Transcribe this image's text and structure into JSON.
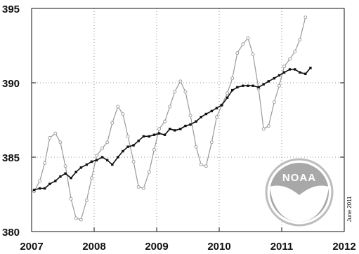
{
  "chart_data": {
    "type": "line",
    "xlim": [
      2007,
      2012
    ],
    "ylim": [
      380,
      395
    ],
    "x_ticks": [
      {
        "value": 2007,
        "label": "2007"
      },
      {
        "value": 2008,
        "label": "2008"
      },
      {
        "value": 2009,
        "label": "2009"
      },
      {
        "value": 2010,
        "label": "2010"
      },
      {
        "value": 2011,
        "label": "2011"
      },
      {
        "value": 2012,
        "label": "2012"
      }
    ],
    "y_ticks": [
      {
        "value": 380,
        "label": "380"
      },
      {
        "value": 385,
        "label": "385"
      },
      {
        "value": 390,
        "label": "390"
      },
      {
        "value": 395,
        "label": "395"
      }
    ],
    "grid": true,
    "grid_style": "dotted",
    "side_note": "June 2011",
    "logo_text": "NOAA",
    "series": [
      {
        "style": "seasonal",
        "color": "#999999",
        "points": [
          [
            2007.04,
            382.7
          ],
          [
            2007.13,
            383.4
          ],
          [
            2007.21,
            384.6
          ],
          [
            2007.29,
            386.3
          ],
          [
            2007.38,
            386.6
          ],
          [
            2007.46,
            386.0
          ],
          [
            2007.54,
            384.4
          ],
          [
            2007.63,
            382.2
          ],
          [
            2007.71,
            380.9
          ],
          [
            2007.79,
            380.8
          ],
          [
            2007.88,
            382.1
          ],
          [
            2007.96,
            383.6
          ],
          [
            2008.04,
            385.1
          ],
          [
            2008.13,
            385.6
          ],
          [
            2008.21,
            386.0
          ],
          [
            2008.29,
            387.3
          ],
          [
            2008.38,
            388.4
          ],
          [
            2008.46,
            387.9
          ],
          [
            2008.54,
            386.4
          ],
          [
            2008.63,
            384.7
          ],
          [
            2008.71,
            383.0
          ],
          [
            2008.79,
            382.9
          ],
          [
            2008.88,
            384.0
          ],
          [
            2008.96,
            385.5
          ],
          [
            2009.04,
            386.9
          ],
          [
            2009.13,
            387.4
          ],
          [
            2009.21,
            388.4
          ],
          [
            2009.29,
            389.4
          ],
          [
            2009.38,
            390.1
          ],
          [
            2009.46,
            389.4
          ],
          [
            2009.54,
            387.8
          ],
          [
            2009.63,
            385.7
          ],
          [
            2009.71,
            384.5
          ],
          [
            2009.79,
            384.4
          ],
          [
            2009.88,
            386.0
          ],
          [
            2009.96,
            387.7
          ],
          [
            2010.04,
            388.5
          ],
          [
            2010.13,
            389.3
          ],
          [
            2010.21,
            390.3
          ],
          [
            2010.29,
            392.0
          ],
          [
            2010.38,
            392.6
          ],
          [
            2010.46,
            393.0
          ],
          [
            2010.54,
            391.9
          ],
          [
            2010.63,
            389.6
          ],
          [
            2010.71,
            386.9
          ],
          [
            2010.79,
            387.1
          ],
          [
            2010.88,
            388.7
          ],
          [
            2010.96,
            389.8
          ],
          [
            2011.04,
            391.1
          ],
          [
            2011.13,
            391.6
          ],
          [
            2011.21,
            392.1
          ],
          [
            2011.29,
            392.9
          ],
          [
            2011.38,
            394.4
          ]
        ]
      },
      {
        "style": "trend",
        "color": "#111111",
        "points": [
          [
            2007.04,
            382.8
          ],
          [
            2007.13,
            382.9
          ],
          [
            2007.21,
            382.9
          ],
          [
            2007.29,
            383.2
          ],
          [
            2007.38,
            383.4
          ],
          [
            2007.46,
            383.7
          ],
          [
            2007.54,
            383.9
          ],
          [
            2007.63,
            383.6
          ],
          [
            2007.71,
            384.0
          ],
          [
            2007.79,
            384.3
          ],
          [
            2007.88,
            384.5
          ],
          [
            2007.96,
            384.7
          ],
          [
            2008.04,
            384.8
          ],
          [
            2008.13,
            385.0
          ],
          [
            2008.21,
            384.8
          ],
          [
            2008.29,
            384.5
          ],
          [
            2008.38,
            385.0
          ],
          [
            2008.46,
            385.4
          ],
          [
            2008.54,
            385.7
          ],
          [
            2008.63,
            385.8
          ],
          [
            2008.71,
            386.1
          ],
          [
            2008.79,
            386.4
          ],
          [
            2008.88,
            386.4
          ],
          [
            2008.96,
            386.5
          ],
          [
            2009.04,
            386.6
          ],
          [
            2009.13,
            386.5
          ],
          [
            2009.21,
            386.9
          ],
          [
            2009.29,
            386.8
          ],
          [
            2009.38,
            386.9
          ],
          [
            2009.46,
            387.1
          ],
          [
            2009.54,
            387.2
          ],
          [
            2009.63,
            387.4
          ],
          [
            2009.71,
            387.7
          ],
          [
            2009.79,
            387.9
          ],
          [
            2009.88,
            388.1
          ],
          [
            2009.96,
            388.3
          ],
          [
            2010.04,
            388.5
          ],
          [
            2010.13,
            389.0
          ],
          [
            2010.21,
            389.5
          ],
          [
            2010.29,
            389.7
          ],
          [
            2010.38,
            389.8
          ],
          [
            2010.46,
            389.8
          ],
          [
            2010.54,
            389.8
          ],
          [
            2010.63,
            389.7
          ],
          [
            2010.71,
            389.9
          ],
          [
            2010.79,
            390.1
          ],
          [
            2010.88,
            390.3
          ],
          [
            2010.96,
            390.5
          ],
          [
            2011.04,
            390.7
          ],
          [
            2011.13,
            390.9
          ],
          [
            2011.21,
            390.9
          ],
          [
            2011.29,
            390.7
          ],
          [
            2011.38,
            390.6
          ],
          [
            2011.46,
            391.0
          ]
        ]
      }
    ]
  }
}
